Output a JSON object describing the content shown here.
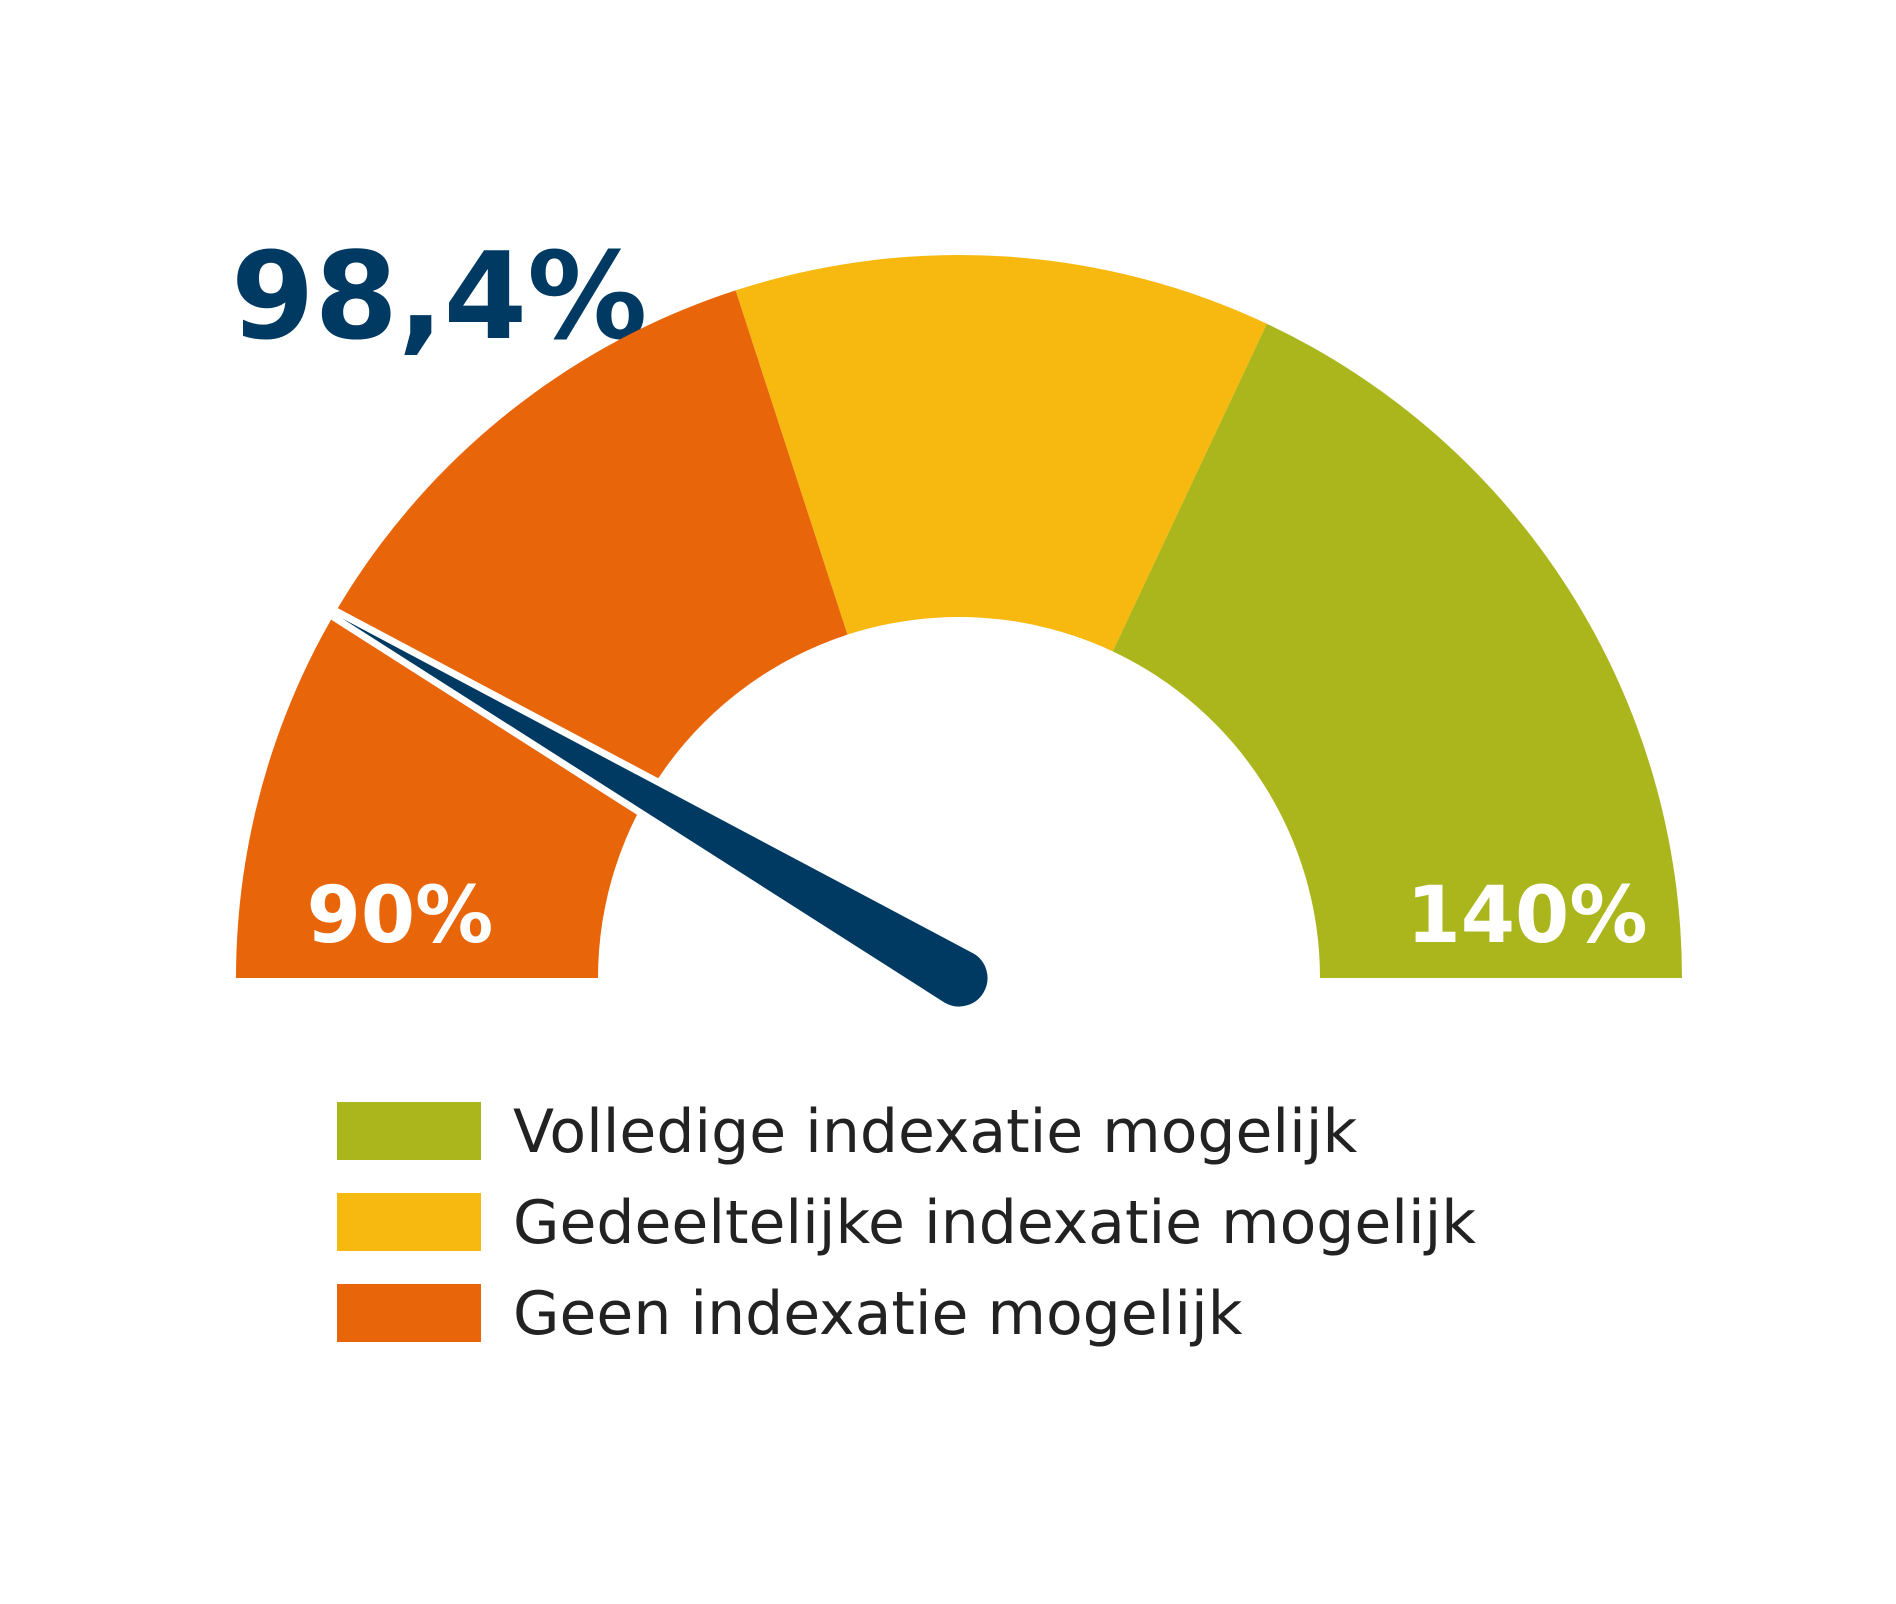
{
  "chart_data": {
    "type": "gauge",
    "value": 98.4,
    "value_label": "98,4%",
    "value_color": "#003a63",
    "ylim": [
      90,
      140
    ],
    "yticks": [
      {
        "value": 90,
        "label": "90%"
      },
      {
        "value": 140,
        "label": "140%"
      }
    ],
    "series": [
      {
        "name": "Volledige indexatie mogelijk",
        "color": "#aab61c",
        "values": [
          122,
          140
        ]
      },
      {
        "name": "Gedeeltelijke indexatie mogelijk",
        "color": "#f7b80f",
        "values": [
          110,
          122
        ]
      },
      {
        "name": "Geen indexatie mogelijk",
        "color": "#e8650a",
        "values": [
          90,
          110
        ]
      }
    ]
  }
}
